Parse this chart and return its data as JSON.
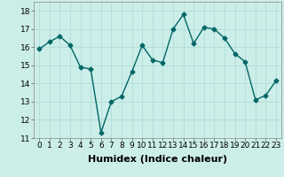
{
  "x": [
    0,
    1,
    2,
    3,
    4,
    5,
    6,
    7,
    8,
    9,
    10,
    11,
    12,
    13,
    14,
    15,
    16,
    17,
    18,
    19,
    20,
    21,
    22,
    23
  ],
  "y": [
    15.9,
    16.3,
    16.6,
    16.1,
    14.9,
    14.8,
    11.3,
    13.0,
    13.3,
    14.65,
    16.1,
    15.3,
    15.15,
    17.0,
    17.8,
    16.2,
    17.1,
    17.0,
    16.5,
    15.65,
    15.2,
    13.1,
    13.35,
    14.15
  ],
  "xlabel": "Humidex (Indice chaleur)",
  "ylim": [
    11,
    18.5
  ],
  "xlim": [
    -0.5,
    23.5
  ],
  "yticks": [
    11,
    12,
    13,
    14,
    15,
    16,
    17,
    18
  ],
  "xticks": [
    0,
    1,
    2,
    3,
    4,
    5,
    6,
    7,
    8,
    9,
    10,
    11,
    12,
    13,
    14,
    15,
    16,
    17,
    18,
    19,
    20,
    21,
    22,
    23
  ],
  "line_color": "#006666",
  "marker": "D",
  "marker_size": 2.5,
  "bg_color": "#cceee8",
  "grid_color": "#b0ddd8",
  "line_width": 1.0,
  "xlabel_fontsize": 8,
  "tick_fontsize": 6.5
}
